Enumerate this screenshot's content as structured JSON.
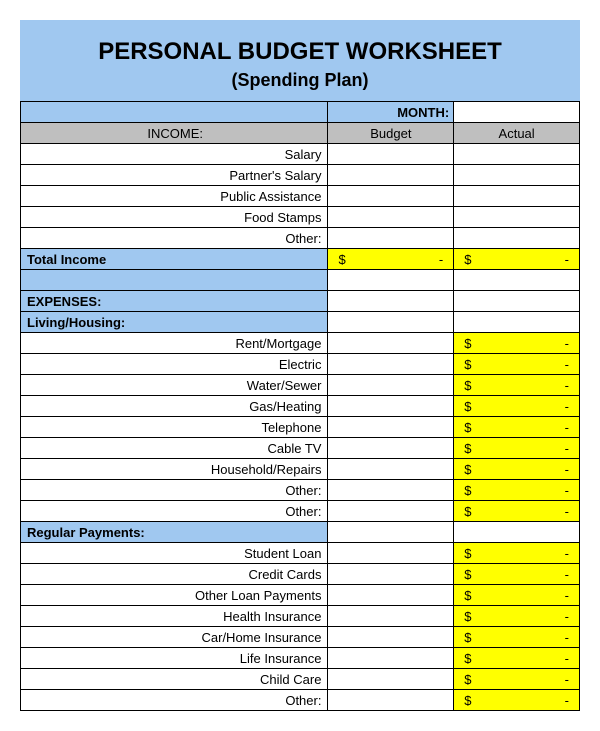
{
  "title": "PERSONAL BUDGET WORKSHEET",
  "subtitle": "(Spending Plan)",
  "monthLabel": "MONTH:",
  "monthValue": "",
  "columns": {
    "left": "",
    "budget": "Budget",
    "actual": "Actual"
  },
  "currency": {
    "symbol": "$",
    "dash": "-"
  },
  "income": {
    "header": "INCOME:",
    "items": [
      "Salary",
      "Partner's Salary",
      "Public Assistance",
      "Food Stamps",
      "Other:"
    ],
    "totalLabel": "Total Income"
  },
  "expenses": {
    "header": "EXPENSES:",
    "living": {
      "header": "Living/Housing:",
      "items": [
        "Rent/Mortgage",
        "Electric",
        "Water/Sewer",
        "Gas/Heating",
        "Telephone",
        "Cable TV",
        "Household/Repairs",
        "Other:",
        "Other:"
      ]
    },
    "regular": {
      "header": "Regular Payments:",
      "items": [
        "Student Loan",
        "Credit Cards",
        "Other Loan Payments",
        "Health Insurance",
        "Car/Home Insurance",
        "Life Insurance",
        "Child Care",
        "Other:"
      ]
    }
  },
  "colors": {
    "headerBg": "#a0c8f0",
    "columnHeaderBg": "#bfbfbf",
    "highlightBg": "#ffff00",
    "border": "#000000",
    "white": "#ffffff"
  }
}
